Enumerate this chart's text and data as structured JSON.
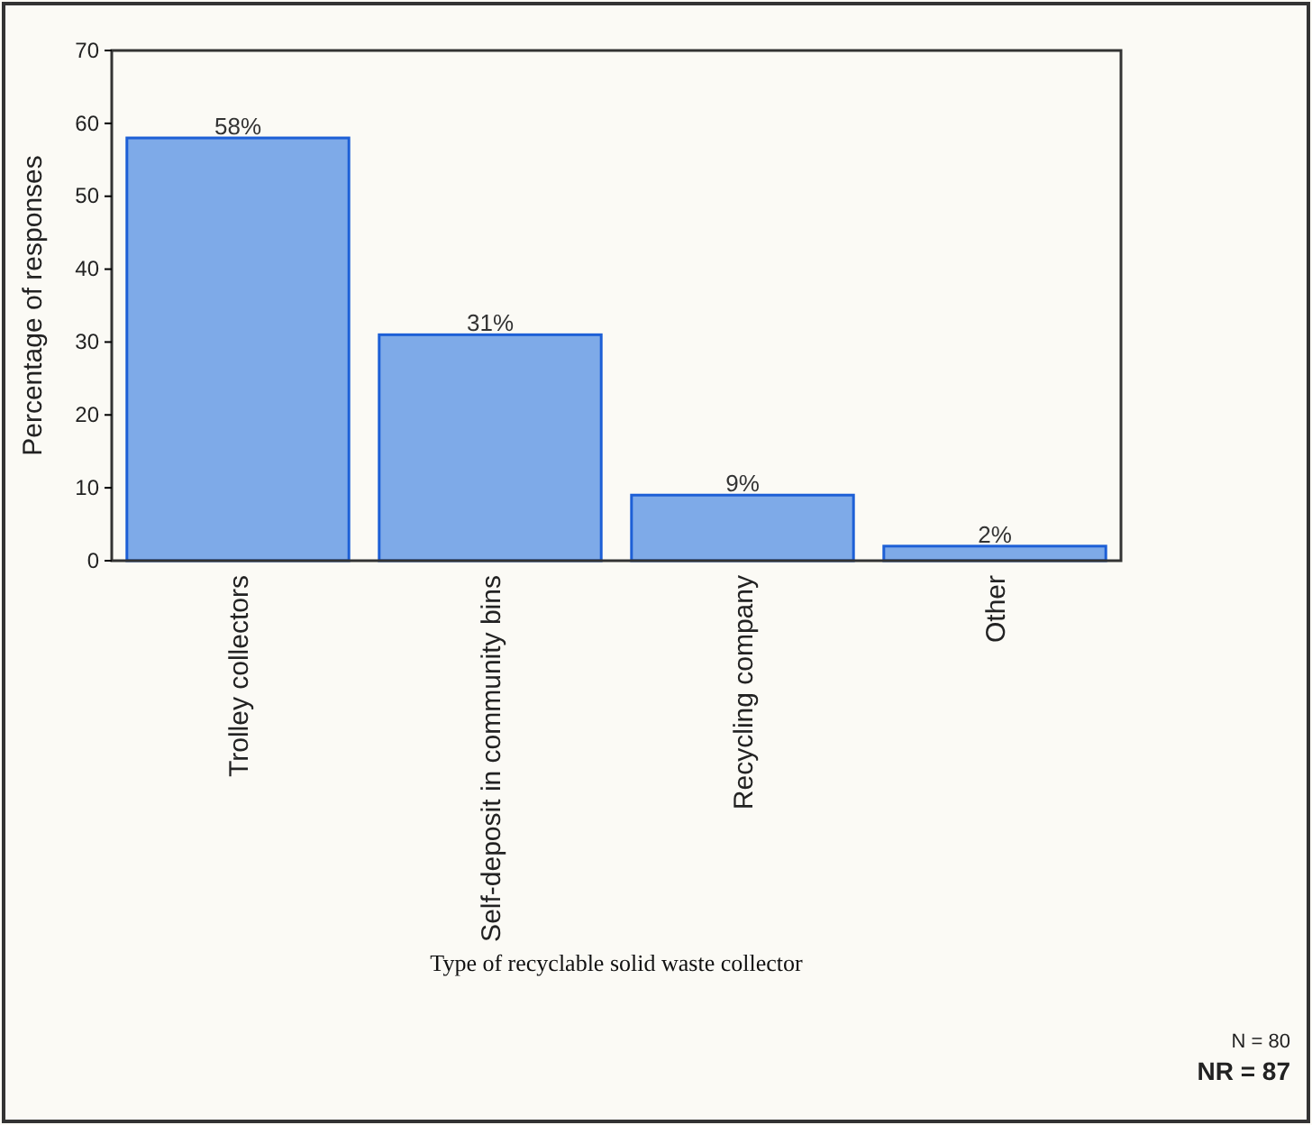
{
  "chart_data": {
    "type": "bar",
    "xlabel": "Type of recyclable solid waste collector",
    "ylabel": "Percentage of responses",
    "categories": [
      "Trolley collectors",
      "Self-deposit in community bins",
      "Recycling company",
      "Other"
    ],
    "values": [
      58,
      31,
      9,
      2
    ],
    "value_labels": [
      "58%",
      "31%",
      "9%",
      "2%"
    ],
    "color": "#7eaae8",
    "ylim": [
      0,
      70
    ],
    "yticks": [
      0,
      10,
      20,
      30,
      40,
      50,
      60,
      70
    ],
    "grid": false,
    "annotations": [
      "N = 80",
      "NR = 87"
    ]
  }
}
